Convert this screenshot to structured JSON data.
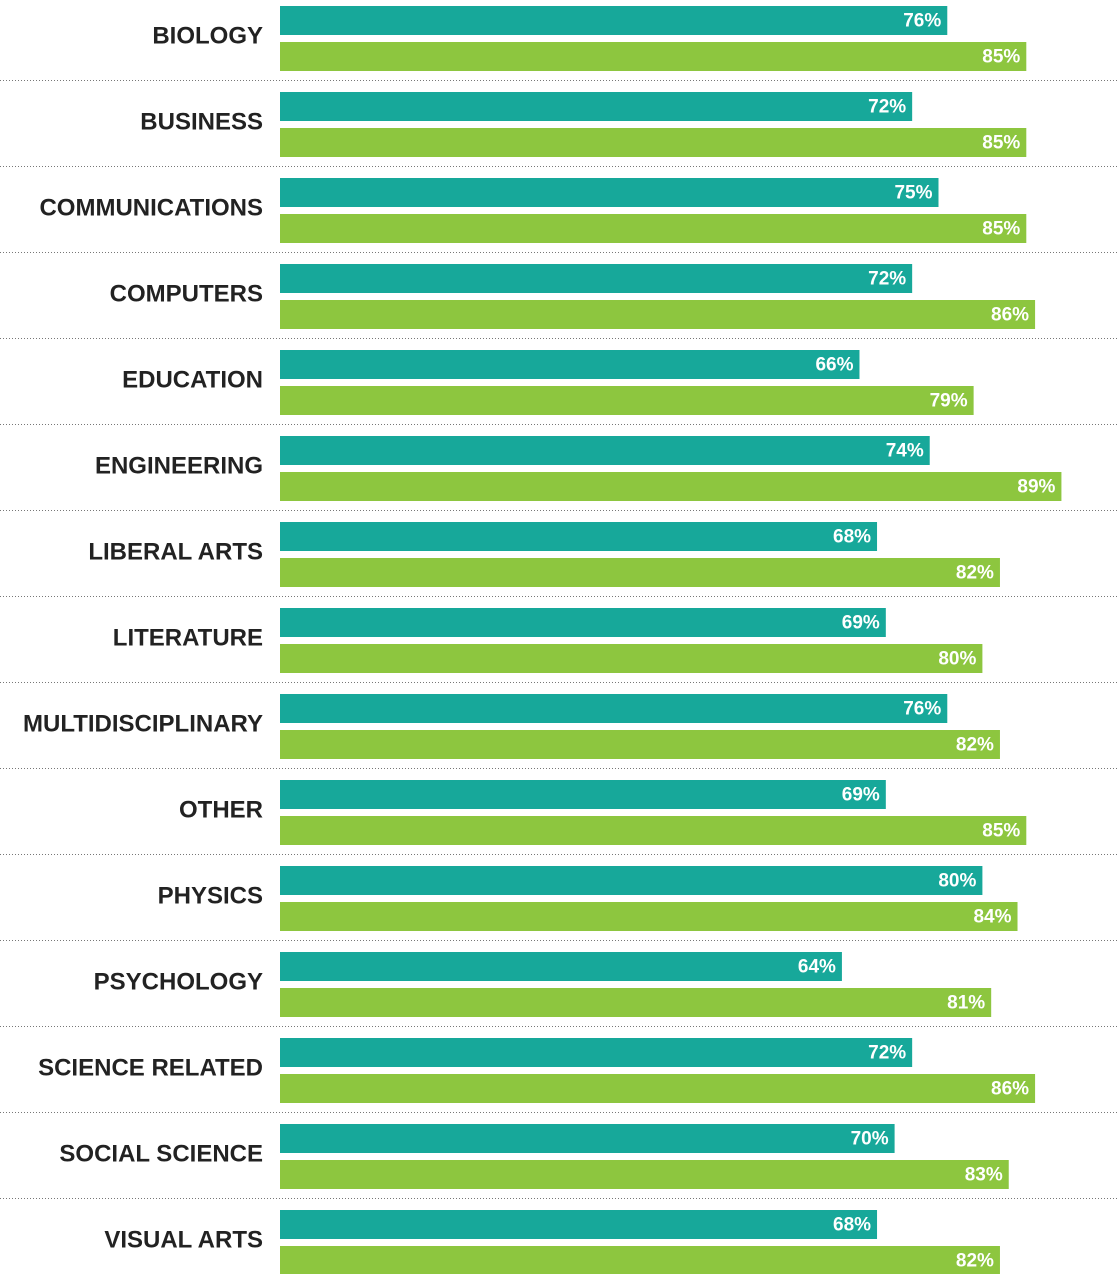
{
  "chart_data": {
    "type": "bar",
    "orientation": "horizontal",
    "categories": [
      "BIOLOGY",
      "BUSINESS",
      "COMMUNICATIONS",
      "COMPUTERS",
      "EDUCATION",
      "ENGINEERING",
      "LIBERAL ARTS",
      "LITERATURE",
      "MULTIDISCIPLINARY",
      "OTHER",
      "PHYSICS",
      "PSYCHOLOGY",
      "SCIENCE RELATED",
      "SOCIAL SCIENCE",
      "VISUAL ARTS"
    ],
    "series": [
      {
        "color": "#17a89a",
        "values": [
          76,
          72,
          75,
          72,
          66,
          74,
          68,
          69,
          76,
          69,
          80,
          64,
          72,
          70,
          68
        ],
        "value_labels": [
          "76%",
          "72%",
          "75%",
          "72%",
          "66%",
          "74%",
          "68%",
          "69%",
          "76%",
          "69%",
          "80%",
          "64%",
          "72%",
          "70%",
          "68%"
        ]
      },
      {
        "color": "#8dc63f",
        "values": [
          85,
          85,
          85,
          86,
          79,
          89,
          82,
          80,
          82,
          85,
          84,
          81,
          86,
          83,
          82
        ],
        "value_labels": [
          "85%",
          "85%",
          "85%",
          "86%",
          "79%",
          "89%",
          "82%",
          "80%",
          "82%",
          "85%",
          "84%",
          "81%",
          "86%",
          "83%",
          "82%"
        ]
      }
    ]
  }
}
